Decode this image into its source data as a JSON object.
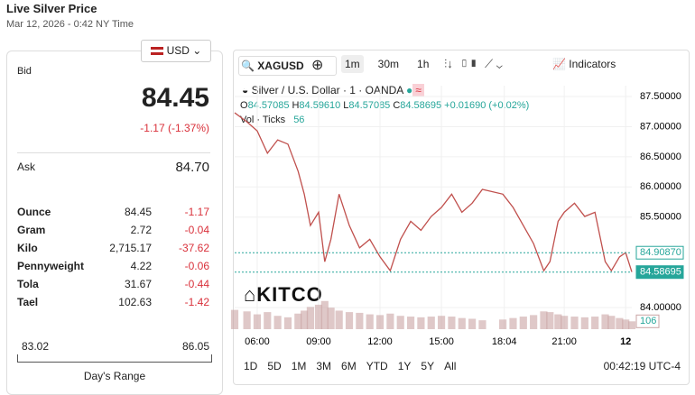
{
  "header": {
    "title": "Live Silver Price",
    "date": "Mar 12, 2026 - 0:42 NY Time",
    "currency": "USD"
  },
  "quote": {
    "bid_label": "Bid",
    "bid": "84.45",
    "change": "-1.17 (-1.37%)",
    "ask_label": "Ask",
    "ask": "84.70"
  },
  "table": {
    "rows": [
      [
        "Ounce",
        "84.45",
        "-1.17"
      ],
      [
        "Gram",
        "2.72",
        "-0.04"
      ],
      [
        "Kilo",
        "2,715.17",
        "-37.62"
      ],
      [
        "Pennyweight",
        "4.22",
        "-0.06"
      ],
      [
        "Tola",
        "31.67",
        "-0.44"
      ],
      [
        "Tael",
        "102.63",
        "-1.42"
      ]
    ]
  },
  "range": {
    "low": "83.02",
    "high": "86.05",
    "label": "Day's Range"
  },
  "widget": {
    "symbol": "XAGUSD",
    "intervals": [
      "1m",
      "30m",
      "1h"
    ],
    "indicators": "Indicators",
    "legend": "Silver / U.S. Dollar · 1 · OANDA",
    "ohlc": [
      "O",
      "84.57085",
      "H",
      "84.59610",
      "L",
      "84.57085",
      "C",
      "84.58695",
      "+0.01690 (+0.02%)"
    ],
    "volume_label": "Vol · Ticks",
    "volume_value": "56",
    "watermark": "KITCO",
    "ranges": [
      "1D",
      "5D",
      "1M",
      "3M",
      "6M",
      "YTD",
      "1Y",
      "5Y",
      "All"
    ],
    "clock": "00:42:19 UTC-4"
  },
  "chart_data": {
    "type": "line",
    "color": "#c0504d",
    "x": [
      4.9,
      5.5,
      6,
      6.5,
      7,
      7.5,
      8,
      8.3,
      8.6,
      9,
      9.3,
      9.6,
      10,
      10.5,
      11,
      11.5,
      12,
      12.5,
      13,
      13.5,
      14,
      14.5,
      15,
      15.5,
      16,
      16.5,
      17,
      18,
      18.5,
      19,
      19.5,
      20,
      20.3,
      20.7,
      21,
      21.5,
      22,
      22.5,
      23,
      23.3,
      23.7,
      24,
      24.3
    ],
    "values": [
      87.23,
      87.08,
      86.93,
      86.56,
      86.78,
      86.71,
      86.26,
      85.88,
      85.36,
      85.58,
      84.76,
      85.13,
      85.88,
      85.36,
      84.99,
      85.13,
      84.84,
      84.61,
      85.13,
      85.43,
      85.28,
      85.51,
      85.66,
      85.88,
      85.58,
      85.73,
      85.96,
      85.88,
      85.66,
      85.36,
      85.06,
      84.61,
      84.76,
      85.43,
      85.58,
      85.73,
      85.51,
      85.58,
      84.76,
      84.61,
      84.84,
      84.91,
      84.59
    ],
    "volume": {
      "color": "#c9a3a3",
      "values": [
        260,
        240,
        200,
        230,
        180,
        160,
        210,
        250,
        300,
        330,
        380,
        290,
        250,
        230,
        220,
        200,
        190,
        210,
        180,
        170,
        160,
        170,
        180,
        170,
        150,
        140,
        120,
        130,
        150,
        170,
        190,
        240,
        230,
        200,
        180,
        170,
        160,
        170,
        200,
        180,
        150,
        130,
        106
      ],
      "ylim": [
        0,
        730
      ],
      "label": "106"
    },
    "xlim": [
      4.9,
      24.3
    ],
    "xticks": [
      {
        "value": 6,
        "label": "06:00"
      },
      {
        "value": 9,
        "label": "09:00"
      },
      {
        "value": 12,
        "label": "12:00"
      },
      {
        "value": 15,
        "label": "15:00"
      },
      {
        "value": 18.07,
        "label": "18:04"
      },
      {
        "value": 21,
        "label": "21:00"
      },
      {
        "value": 24,
        "label": "12"
      }
    ],
    "ylim": [
      83.64,
      87.68
    ],
    "yticks": [
      {
        "value": 87.5,
        "label": "87.50000"
      },
      {
        "value": 87,
        "label": "87.00000"
      },
      {
        "value": 86.5,
        "label": "86.50000"
      },
      {
        "value": 86,
        "label": "86.00000"
      },
      {
        "value": 85.5,
        "label": "85.50000"
      },
      {
        "value": 84,
        "label": "84.00000"
      }
    ],
    "markers": [
      {
        "value": 84.9087,
        "label": "84.90870",
        "color": "#26a69a"
      },
      {
        "value": 84.58695,
        "label": "84.58695",
        "color": "#26a69a"
      }
    ]
  }
}
